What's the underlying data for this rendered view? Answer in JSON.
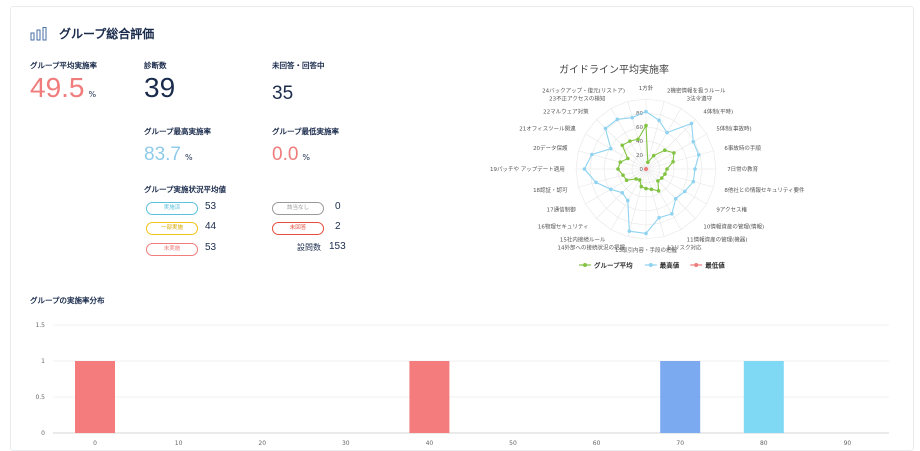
{
  "header": {
    "title": "グループ総合評価",
    "icon": "bar-chart-icon"
  },
  "stats": {
    "avg_label": "グループ平均実施率",
    "avg_value": "49.5",
    "avg_unit": "%",
    "diag_label": "診断数",
    "diag_value": "39",
    "unanswered_label": "未回答・回答中",
    "unanswered_value": "35",
    "max_label": "グループ最高実施率",
    "max_value": "83.7",
    "max_unit": "%",
    "min_label": "グループ最低実施率",
    "min_value": "0.0",
    "min_unit": "%"
  },
  "status": {
    "label": "グループ実施状況平均値",
    "items": [
      {
        "label": "実施済",
        "value": "53",
        "color": "#5bc0de"
      },
      {
        "label": "一部実施",
        "value": "44",
        "color": "#f0c419"
      },
      {
        "label": "未実施",
        "value": "53",
        "color": "#f07c7c"
      },
      {
        "label": "該当なし",
        "value": "0",
        "color": "#999999"
      },
      {
        "label": "未回答",
        "value": "2",
        "color": "#e74c3c"
      }
    ],
    "total_label": "設問数",
    "total_value": "153"
  },
  "radar": {
    "title": "ガイドライン平均実施率",
    "axes": [
      "1方針",
      "2機密情報を扱うルール",
      "3法令遵守",
      "4体制(平時)",
      "5体制(事故時)",
      "6事故時の手順",
      "7日常の教育",
      "8他社との情報セキュリティ要件",
      "9アクセス権",
      "10情報資産の管理(情報)",
      "11情報資産の管理(機器)",
      "12リスク対応",
      "13取引内容・手段の把握",
      "14外部への接続状況の把握",
      "15社内接続ルール",
      "16物理セキュリティ",
      "17通信制御",
      "18認証・認可",
      "19パッチや アップデート適用",
      "20データ保護",
      "21オフィスツール関連",
      "22マルウェア対策",
      "23不正アクセスの検知",
      "24バックアップ・復元(リストア)"
    ],
    "ticks": [
      "0",
      "20",
      "40",
      "60",
      "80"
    ],
    "average": [
      62,
      10,
      22,
      38,
      46,
      40,
      30,
      28,
      26,
      24,
      36,
      30,
      28,
      26,
      18,
      20,
      32,
      34,
      40,
      38,
      30,
      48,
      46,
      44
    ],
    "max": [
      82,
      72,
      60,
      92,
      78,
      78,
      70,
      70,
      64,
      60,
      74,
      72,
      92,
      92,
      52,
      48,
      58,
      74,
      88,
      80,
      58,
      82,
      82,
      76
    ],
    "min": [
      0,
      0,
      0,
      0,
      0,
      0,
      0,
      0,
      0,
      0,
      0,
      0,
      0,
      0,
      0,
      0,
      0,
      0,
      0,
      0,
      0,
      0,
      0,
      0
    ],
    "legend": [
      "グループ平均",
      "最高値",
      "最低値"
    ],
    "colors": {
      "average": "#82c341",
      "max": "#8fd3f0",
      "min": "#f07c7c"
    }
  },
  "distribution": {
    "title": "グループの実施率分布",
    "chart_data": {
      "type": "bar",
      "categories": [
        "0",
        "10",
        "20",
        "30",
        "40",
        "50",
        "60",
        "70",
        "80",
        "90"
      ],
      "values": [
        1,
        0,
        0,
        0,
        1,
        0,
        0,
        1,
        1,
        0
      ],
      "colors": [
        "#f47c7c",
        "#f47c7c",
        "#f47c7c",
        "#f47c7c",
        "#f47c7c",
        "#f47c7c",
        "#f47c7c",
        "#7baaf0",
        "#7fd8f4",
        "#7fd8f4"
      ],
      "yticks": [
        "0",
        "0.5",
        "1",
        "1.5"
      ],
      "ylim": [
        0,
        1.5
      ]
    }
  }
}
